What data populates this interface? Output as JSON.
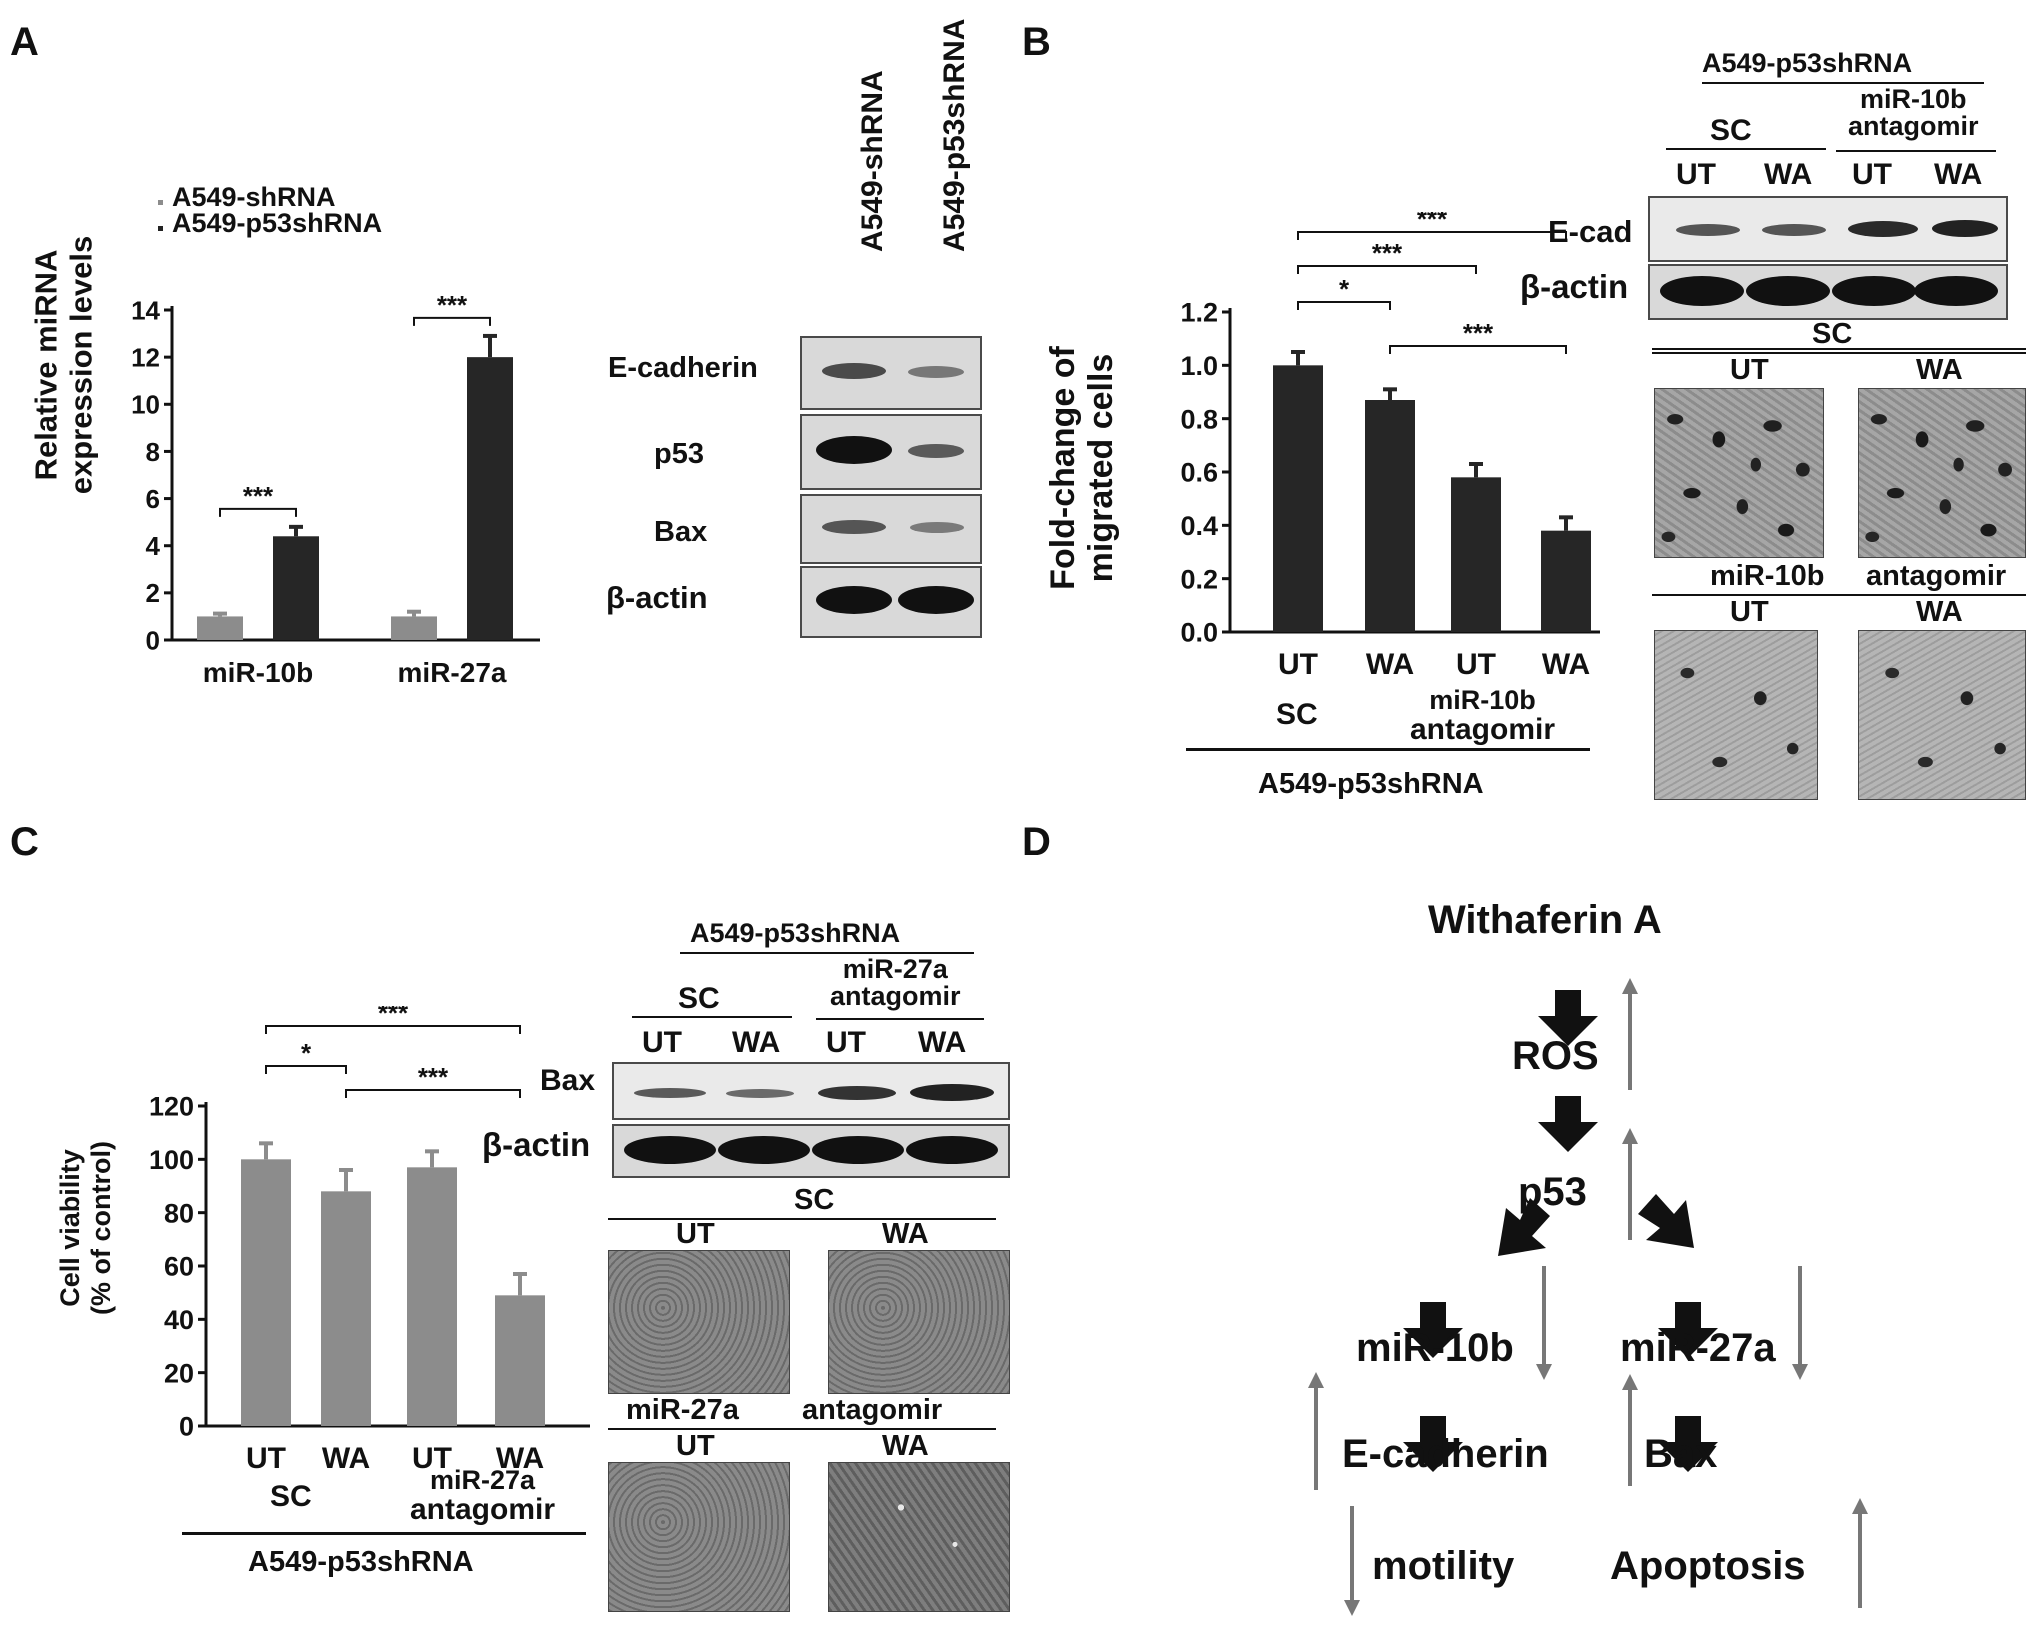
{
  "panels": {
    "A": {
      "letter": "A",
      "legend": [
        "A549-shRNA",
        "A549-p53shRNA"
      ],
      "ylabel_line1": "Relative miRNA",
      "ylabel_line2": "expression levels",
      "blot_lanes": [
        "A549-shRNA",
        "A549-p53shRNA"
      ],
      "blot_rows": [
        "E-cadherin",
        "p53",
        "Bax",
        "β-actin"
      ]
    },
    "B": {
      "letter": "B",
      "ylabel_line1": "Fold-change of",
      "ylabel_line2": "migrated cells",
      "group_sc": "SC",
      "group_antagomir_line1": "miR-10b",
      "group_antagomir_line2": "antagomir",
      "cell_line": "A549-p53shRNA",
      "blot_header": "A549-p53shRNA",
      "blot_sc": "SC",
      "blot_antagomir_line1": "miR-10b",
      "blot_antagomir_line2": "antagomir",
      "blot_lanes": [
        "UT",
        "WA",
        "UT",
        "WA"
      ],
      "blot_rows": [
        "E-cad",
        "β-actin"
      ],
      "image_sc_label": "SC",
      "image_antagomir_label_left": "miR-10b",
      "image_antagomir_label_right": "antagomir",
      "image_col_labels": [
        "UT",
        "WA"
      ]
    },
    "C": {
      "letter": "C",
      "ylabel_line1": "Cell viability",
      "ylabel_line2": "(% of control)",
      "group_sc": "SC",
      "group_antagomir_line1": "miR-27a",
      "group_antagomir_line2": "antagomir",
      "cell_line": "A549-p53shRNA",
      "blot_header": "A549-p53shRNA",
      "blot_sc": "SC",
      "blot_antagomir_line1": "miR-27a",
      "blot_antagomir_line2": "antagomir",
      "blot_lanes": [
        "UT",
        "WA",
        "UT",
        "WA"
      ],
      "blot_rows": [
        "Bax",
        "β-actin"
      ],
      "image_sc_label": "SC",
      "image_antagomir_label_left": "miR-27a",
      "image_antagomir_label_right": "antagomir",
      "image_col_labels": [
        "UT",
        "WA"
      ]
    },
    "D": {
      "letter": "D",
      "nodes": {
        "withaferin": "Withaferin A",
        "ros": "ROS",
        "p53": "p53",
        "mir10b": "miR-10b",
        "mir27a": "miR-27a",
        "ecadherin": "E-cadherin",
        "bax": "Bax",
        "motility": "motility",
        "apoptosis": "Apoptosis"
      }
    }
  },
  "chart_data": [
    {
      "id": "A",
      "type": "bar",
      "title": "",
      "xlabel": "",
      "ylabel": "Relative miRNA expression levels",
      "categories": [
        "miR-10b",
        "miR-27a"
      ],
      "series": [
        {
          "name": "A549-shRNA",
          "values": [
            1.0,
            1.0
          ],
          "errors": [
            0.12,
            0.2
          ],
          "color": "#8c8c8c"
        },
        {
          "name": "A549-p53shRNA",
          "values": [
            4.4,
            12.0
          ],
          "errors": [
            0.4,
            0.9
          ],
          "color": "#262626"
        }
      ],
      "ylim": [
        0,
        14
      ],
      "yticks": [
        0,
        2,
        4,
        6,
        8,
        10,
        12,
        14
      ],
      "significance": [
        {
          "category": "miR-10b",
          "label": "***"
        },
        {
          "category": "miR-27a",
          "label": "***"
        }
      ]
    },
    {
      "id": "B",
      "type": "bar",
      "title": "",
      "xlabel": "",
      "ylabel": "Fold-change of migrated cells",
      "categories": [
        "UT",
        "WA",
        "UT",
        "WA"
      ],
      "values": [
        1.0,
        0.87,
        0.58,
        0.38
      ],
      "errors": [
        0.05,
        0.04,
        0.05,
        0.05
      ],
      "color": "#262626",
      "ylim": [
        0,
        1.2
      ],
      "yticks": [
        0,
        0.2,
        0.4,
        0.6,
        0.8,
        1.0,
        1.2
      ],
      "significance": [
        {
          "from": 0,
          "to": 1,
          "label": "*"
        },
        {
          "from": 0,
          "to": 2,
          "label": "***"
        },
        {
          "from": 0,
          "to": 3,
          "label": "***"
        },
        {
          "from": 1,
          "to": 3,
          "label": "***"
        }
      ]
    },
    {
      "id": "C",
      "type": "bar",
      "title": "",
      "xlabel": "",
      "ylabel": "Cell viability (% of control)",
      "categories": [
        "UT",
        "WA",
        "UT",
        "WA"
      ],
      "values": [
        100,
        88,
        97,
        49
      ],
      "errors": [
        6,
        8,
        6,
        8
      ],
      "color": "#8c8c8c",
      "ylim": [
        0,
        120
      ],
      "yticks": [
        0,
        20,
        40,
        60,
        80,
        100,
        120
      ],
      "significance": [
        {
          "from": 0,
          "to": 1,
          "label": "*"
        },
        {
          "from": 0,
          "to": 3,
          "label": "***"
        },
        {
          "from": 1,
          "to": 3,
          "label": "***"
        }
      ]
    }
  ]
}
